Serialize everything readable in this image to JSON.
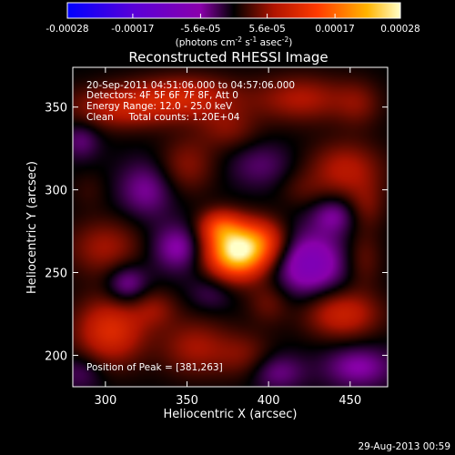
{
  "chart_data": {
    "type": "heatmap",
    "title": "Reconstructed RHESSI Image",
    "xlabel": "Heliocentric X (arcsec)",
    "ylabel": "Heliocentric Y (arcsec)",
    "xlim": [
      280,
      473
    ],
    "ylim": [
      181,
      374
    ],
    "x_ticks": [
      300,
      350,
      400,
      450
    ],
    "y_ticks": [
      200,
      250,
      300,
      350
    ],
    "colorbar": {
      "ticks": [
        "-0.00028",
        "-0.00017",
        "-5.6e-05",
        "5.6e-05",
        "0.00017",
        "0.00028"
      ],
      "tick_values": [
        -0.00028,
        -0.00017,
        -5.6e-05,
        5.6e-05,
        0.00017,
        0.00028
      ],
      "range": [
        -0.00028,
        0.00028
      ],
      "units_text": "(photons cm",
      "units_sup1": "-2",
      "units_mid": " s",
      "units_sup2": "-1",
      "units_mid2": " asec",
      "units_sup3": "-2",
      "units_end": ")"
    },
    "annotations": [
      "20-Sep-2011 04:51:06.000 to 04:57:06.000",
      "Detectors: 4F 5F 6F 7F 8F, Att 0",
      "Energy Range: 12.0 - 25.0 keV",
      "Clean     Total counts: 1.20E+04"
    ],
    "peak_text": "Position of Peak = [381,263]",
    "peak": [
      381,
      263
    ],
    "sources": [
      {
        "x": 381,
        "y": 263,
        "sx": 13,
        "sy": 11,
        "amp": 1.0
      },
      {
        "x": 370,
        "y": 278,
        "sx": 9,
        "sy": 7,
        "amp": 0.35
      },
      {
        "x": 398,
        "y": 270,
        "sx": 10,
        "sy": 9,
        "amp": 0.25
      },
      {
        "x": 310,
        "y": 350,
        "sx": 22,
        "sy": 9,
        "amp": 0.28
      },
      {
        "x": 350,
        "y": 356,
        "sx": 22,
        "sy": 9,
        "amp": 0.3
      },
      {
        "x": 420,
        "y": 355,
        "sx": 20,
        "sy": 10,
        "amp": 0.24
      },
      {
        "x": 455,
        "y": 352,
        "sx": 10,
        "sy": 10,
        "amp": 0.14
      },
      {
        "x": 375,
        "y": 337,
        "sx": 13,
        "sy": 9,
        "amp": 0.16
      },
      {
        "x": 350,
        "y": 315,
        "sx": 12,
        "sy": 12,
        "amp": 0.18
      },
      {
        "x": 447,
        "y": 312,
        "sx": 16,
        "sy": 12,
        "amp": 0.26
      },
      {
        "x": 460,
        "y": 290,
        "sx": 8,
        "sy": 10,
        "amp": 0.14
      },
      {
        "x": 300,
        "y": 265,
        "sx": 16,
        "sy": 12,
        "amp": 0.22
      },
      {
        "x": 303,
        "y": 215,
        "sx": 15,
        "sy": 14,
        "amp": 0.38
      },
      {
        "x": 330,
        "y": 228,
        "sx": 10,
        "sy": 8,
        "amp": 0.16
      },
      {
        "x": 355,
        "y": 205,
        "sx": 15,
        "sy": 12,
        "amp": 0.22
      },
      {
        "x": 385,
        "y": 200,
        "sx": 12,
        "sy": 10,
        "amp": 0.15
      },
      {
        "x": 400,
        "y": 232,
        "sx": 9,
        "sy": 9,
        "amp": 0.14
      },
      {
        "x": 445,
        "y": 225,
        "sx": 16,
        "sy": 10,
        "amp": 0.32
      },
      {
        "x": 458,
        "y": 258,
        "sx": 8,
        "sy": 12,
        "amp": 0.14
      },
      {
        "x": 420,
        "y": 300,
        "sx": 10,
        "sy": 8,
        "amp": 0.08
      },
      {
        "x": 290,
        "y": 300,
        "sx": 8,
        "sy": 8,
        "amp": 0.06
      },
      {
        "x": 313,
        "y": 243,
        "sx": 9,
        "sy": 9,
        "amp": -0.22
      },
      {
        "x": 345,
        "y": 265,
        "sx": 12,
        "sy": 10,
        "amp": -0.22
      },
      {
        "x": 325,
        "y": 300,
        "sx": 12,
        "sy": 12,
        "amp": -0.18
      },
      {
        "x": 425,
        "y": 255,
        "sx": 16,
        "sy": 14,
        "amp": -0.3
      },
      {
        "x": 440,
        "y": 285,
        "sx": 10,
        "sy": 8,
        "amp": -0.18
      },
      {
        "x": 455,
        "y": 193,
        "sx": 15,
        "sy": 9,
        "amp": -0.2
      },
      {
        "x": 405,
        "y": 190,
        "sx": 12,
        "sy": 8,
        "amp": -0.16
      },
      {
        "x": 285,
        "y": 190,
        "sx": 10,
        "sy": 8,
        "amp": -0.12
      },
      {
        "x": 285,
        "y": 330,
        "sx": 8,
        "sy": 8,
        "amp": -0.14
      },
      {
        "x": 395,
        "y": 315,
        "sx": 14,
        "sy": 10,
        "amp": -0.12
      },
      {
        "x": 365,
        "y": 238,
        "sx": 10,
        "sy": 8,
        "amp": -0.1
      }
    ]
  },
  "footer": {
    "timestamp": "29-Aug-2013 00:59"
  }
}
